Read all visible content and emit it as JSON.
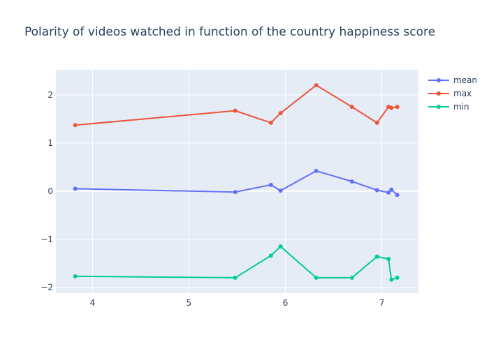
{
  "chart_data": {
    "type": "line",
    "title": "Polarity of videos watched in function of the country happiness score",
    "xlabel": "",
    "ylabel": "",
    "xlim": [
      3.62,
      7.38
    ],
    "ylim": [
      -2.12,
      2.52
    ],
    "xticks": [
      4,
      5,
      6,
      7
    ],
    "yticks": [
      -2,
      -1,
      0,
      1,
      2
    ],
    "ytick_labels": [
      "−2",
      "−1",
      "0",
      "1",
      "2"
    ],
    "grid": true,
    "legend_position": "top-right",
    "x": [
      3.82,
      5.48,
      5.85,
      5.95,
      6.32,
      6.69,
      6.95,
      7.07,
      7.1,
      7.16
    ],
    "series": [
      {
        "name": "mean",
        "color": "#636efa",
        "values": [
          0.05,
          -0.02,
          0.13,
          0.01,
          0.42,
          0.2,
          0.02,
          -0.03,
          0.03,
          -0.08
        ]
      },
      {
        "name": "max",
        "color": "#ef553b",
        "values": [
          1.37,
          1.67,
          1.42,
          1.62,
          2.2,
          1.75,
          1.42,
          1.75,
          1.73,
          1.75
        ]
      },
      {
        "name": "min",
        "color": "#00cc96",
        "values": [
          -1.77,
          -1.8,
          -1.34,
          -1.15,
          -1.8,
          -1.8,
          -1.36,
          -1.41,
          -1.84,
          -1.8
        ]
      }
    ]
  }
}
